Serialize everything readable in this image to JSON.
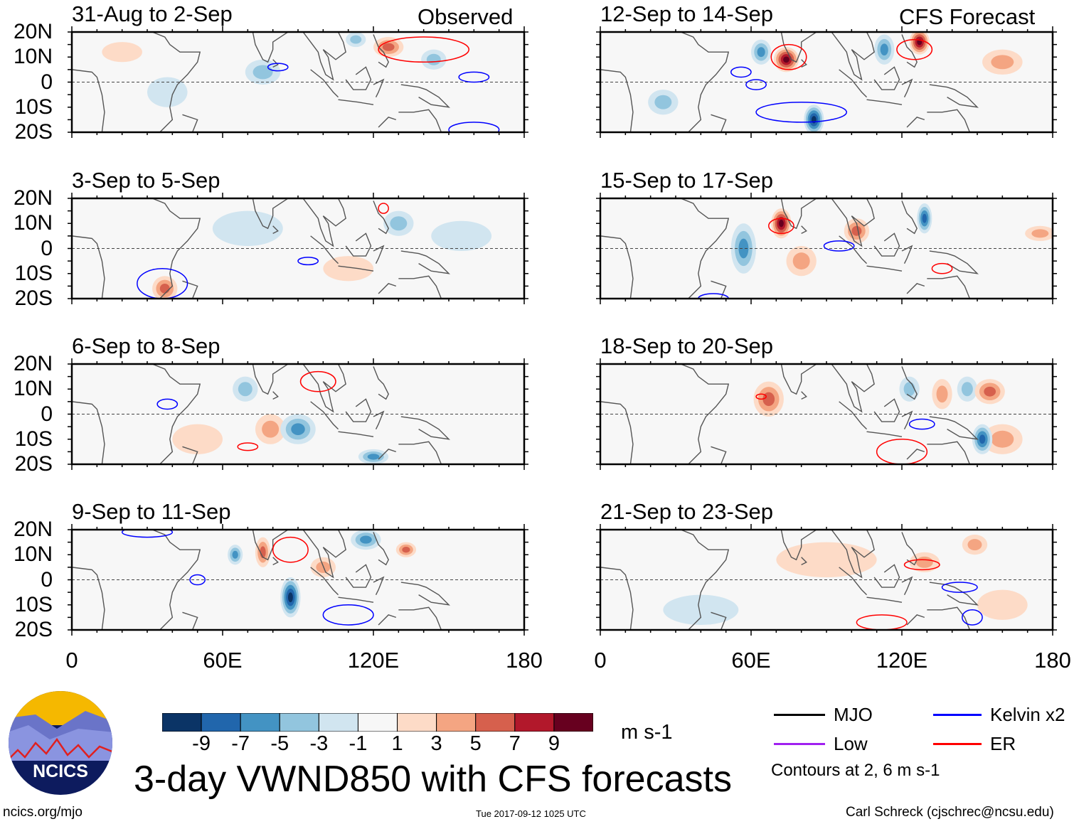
{
  "headers": {
    "left": "Observed",
    "right": "CFS Forecast"
  },
  "lat_labels": [
    "20N",
    "10N",
    "0",
    "10S",
    "20S"
  ],
  "lon_labels": [
    "0",
    "60E",
    "120E",
    "180"
  ],
  "panels": [
    {
      "title": "31-Aug to 2-Sep",
      "blobs": [
        {
          "lon": 76,
          "lat": 4,
          "v": -3,
          "rx": 7,
          "ry": 5
        },
        {
          "lon": 126,
          "lat": 14,
          "v": 5,
          "rx": 6,
          "ry": 4
        },
        {
          "lon": 113,
          "lat": 17,
          "v": -3,
          "rx": 4,
          "ry": 3
        },
        {
          "lon": 144,
          "lat": 9,
          "v": -3,
          "rx": 5,
          "ry": 4
        },
        {
          "lon": 38,
          "lat": -4,
          "v": -1,
          "rx": 8,
          "ry": 6
        },
        {
          "lon": 20,
          "lat": 12,
          "v": 1,
          "rx": 8,
          "ry": 4
        }
      ],
      "contours": [
        {
          "lon": 140,
          "lat": 13,
          "c": "ER",
          "rx": 18,
          "ry": 5
        },
        {
          "lon": 160,
          "lat": 2,
          "c": "Kelvin",
          "rx": 6,
          "ry": 2
        },
        {
          "lon": 82,
          "lat": 6,
          "c": "Kelvin",
          "rx": 4,
          "ry": 1.5
        },
        {
          "lon": 160,
          "lat": -19,
          "c": "Kelvin",
          "rx": 10,
          "ry": 3
        }
      ]
    },
    {
      "title": "3-Sep to 5-Sep",
      "blobs": [
        {
          "lon": 37,
          "lat": -16,
          "v": 5,
          "rx": 5,
          "ry": 5
        },
        {
          "lon": 70,
          "lat": 8,
          "v": -1,
          "rx": 14,
          "ry": 7
        },
        {
          "lon": 130,
          "lat": 10,
          "v": -3,
          "rx": 6,
          "ry": 5
        },
        {
          "lon": 155,
          "lat": 5,
          "v": -1,
          "rx": 12,
          "ry": 6
        },
        {
          "lon": 110,
          "lat": -8,
          "v": 1,
          "rx": 10,
          "ry": 5
        }
      ],
      "contours": [
        {
          "lon": 36,
          "lat": -14,
          "c": "Kelvin",
          "rx": 10,
          "ry": 6
        },
        {
          "lon": 124,
          "lat": 16,
          "c": "ER",
          "rx": 2,
          "ry": 2
        },
        {
          "lon": 94,
          "lat": -5,
          "c": "Kelvin",
          "rx": 4,
          "ry": 1.5
        }
      ]
    },
    {
      "title": "6-Sep to 8-Sep",
      "blobs": [
        {
          "lon": 90,
          "lat": -6,
          "v": -5,
          "rx": 7,
          "ry": 6
        },
        {
          "lon": 69,
          "lat": 10,
          "v": -3,
          "rx": 5,
          "ry": 5
        },
        {
          "lon": 79,
          "lat": -6,
          "v": 3,
          "rx": 6,
          "ry": 6
        },
        {
          "lon": 120,
          "lat": -17,
          "v": -5,
          "rx": 6,
          "ry": 3
        },
        {
          "lon": 50,
          "lat": -10,
          "v": 1,
          "rx": 10,
          "ry": 6
        }
      ],
      "contours": [
        {
          "lon": 98,
          "lat": 13,
          "c": "ER",
          "rx": 7,
          "ry": 4
        },
        {
          "lon": 70,
          "lat": -13,
          "c": "ER",
          "rx": 4,
          "ry": 1.5
        },
        {
          "lon": 38,
          "lat": 4,
          "c": "Kelvin",
          "rx": 4,
          "ry": 2
        }
      ]
    },
    {
      "title": "9-Sep to 11-Sep",
      "blobs": [
        {
          "lon": 87,
          "lat": -7,
          "v": -9,
          "rx": 4,
          "ry": 8
        },
        {
          "lon": 76,
          "lat": 11,
          "v": 5,
          "rx": 3,
          "ry": 6
        },
        {
          "lon": 65,
          "lat": 10,
          "v": -5,
          "rx": 3,
          "ry": 4
        },
        {
          "lon": 117,
          "lat": 16,
          "v": -5,
          "rx": 6,
          "ry": 4
        },
        {
          "lon": 133,
          "lat": 12,
          "v": 5,
          "rx": 4,
          "ry": 3
        },
        {
          "lon": 100,
          "lat": 5,
          "v": 3,
          "rx": 5,
          "ry": 4
        }
      ],
      "contours": [
        {
          "lon": 87,
          "lat": 12,
          "c": "ER",
          "rx": 7,
          "ry": 5
        },
        {
          "lon": 50,
          "lat": 0,
          "c": "Kelvin",
          "rx": 3,
          "ry": 2
        },
        {
          "lon": 110,
          "lat": -14,
          "c": "Kelvin",
          "rx": 10,
          "ry": 4
        },
        {
          "lon": 30,
          "lat": 19,
          "c": "Kelvin",
          "rx": 10,
          "ry": 2
        }
      ]
    },
    {
      "title": "12-Sep to 14-Sep",
      "blobs": [
        {
          "lon": 74,
          "lat": 9,
          "v": 9,
          "rx": 5,
          "ry": 5
        },
        {
          "lon": 127,
          "lat": 16,
          "v": 9,
          "rx": 4,
          "ry": 5
        },
        {
          "lon": 64,
          "lat": 12,
          "v": -5,
          "rx": 4,
          "ry": 5
        },
        {
          "lon": 113,
          "lat": 13,
          "v": -5,
          "rx": 4,
          "ry": 6
        },
        {
          "lon": 85,
          "lat": -15,
          "v": -9,
          "rx": 4,
          "ry": 6
        },
        {
          "lon": 25,
          "lat": -8,
          "v": -3,
          "rx": 6,
          "ry": 5
        },
        {
          "lon": 160,
          "lat": 8,
          "v": 3,
          "rx": 8,
          "ry": 5
        }
      ],
      "contours": [
        {
          "lon": 75,
          "lat": 10,
          "c": "ER",
          "rx": 7,
          "ry": 5
        },
        {
          "lon": 125,
          "lat": 13,
          "c": "ER",
          "rx": 7,
          "ry": 4
        },
        {
          "lon": 56,
          "lat": 4,
          "c": "Kelvin",
          "rx": 4,
          "ry": 2
        },
        {
          "lon": 62,
          "lat": -1,
          "c": "Kelvin",
          "rx": 4,
          "ry": 2
        },
        {
          "lon": 80,
          "lat": -12,
          "c": "Kelvin",
          "rx": 18,
          "ry": 4
        }
      ]
    },
    {
      "title": "15-Sep to 17-Sep",
      "blobs": [
        {
          "lon": 72,
          "lat": 10,
          "v": 9,
          "rx": 4,
          "ry": 6
        },
        {
          "lon": 57,
          "lat": 0,
          "v": -5,
          "rx": 5,
          "ry": 10
        },
        {
          "lon": 129,
          "lat": 12,
          "v": -7,
          "rx": 3,
          "ry": 6
        },
        {
          "lon": 102,
          "lat": 7,
          "v": 5,
          "rx": 5,
          "ry": 5
        },
        {
          "lon": 80,
          "lat": -5,
          "v": 3,
          "rx": 6,
          "ry": 6
        },
        {
          "lon": 175,
          "lat": 6,
          "v": 3,
          "rx": 6,
          "ry": 3
        }
      ],
      "contours": [
        {
          "lon": 72,
          "lat": 9,
          "c": "ER",
          "rx": 5,
          "ry": 3
        },
        {
          "lon": 95,
          "lat": 1,
          "c": "Kelvin",
          "rx": 6,
          "ry": 2
        },
        {
          "lon": 136,
          "lat": -8,
          "c": "ER",
          "rx": 4,
          "ry": 2
        },
        {
          "lon": 45,
          "lat": -20,
          "c": "Kelvin",
          "rx": 6,
          "ry": 2
        }
      ]
    },
    {
      "title": "18-Sep to 20-Sep",
      "blobs": [
        {
          "lon": 67,
          "lat": 6,
          "v": 5,
          "rx": 6,
          "ry": 7
        },
        {
          "lon": 155,
          "lat": 9,
          "v": 5,
          "rx": 6,
          "ry": 5
        },
        {
          "lon": 152,
          "lat": -10,
          "v": -7,
          "rx": 4,
          "ry": 6
        },
        {
          "lon": 146,
          "lat": 10,
          "v": -3,
          "rx": 4,
          "ry": 5
        },
        {
          "lon": 136,
          "lat": 8,
          "v": 3,
          "rx": 4,
          "ry": 6
        },
        {
          "lon": 123,
          "lat": 10,
          "v": -3,
          "rx": 4,
          "ry": 5
        },
        {
          "lon": 160,
          "lat": -10,
          "v": 3,
          "rx": 8,
          "ry": 6
        }
      ],
      "contours": [
        {
          "lon": 128,
          "lat": -4,
          "c": "Kelvin",
          "rx": 5,
          "ry": 2
        },
        {
          "lon": 120,
          "lat": -15,
          "c": "ER",
          "rx": 10,
          "ry": 5
        },
        {
          "lon": 64,
          "lat": 7,
          "c": "ER",
          "rx": 2,
          "ry": 1
        }
      ]
    },
    {
      "title": "21-Sep to 23-Sep",
      "blobs": [
        {
          "lon": 129,
          "lat": 7,
          "v": 3,
          "rx": 6,
          "ry": 4
        },
        {
          "lon": 149,
          "lat": 14,
          "v": 3,
          "rx": 5,
          "ry": 4
        },
        {
          "lon": 90,
          "lat": 8,
          "v": 1,
          "rx": 20,
          "ry": 7
        },
        {
          "lon": 40,
          "lat": -12,
          "v": -1,
          "rx": 15,
          "ry": 6
        },
        {
          "lon": 160,
          "lat": -10,
          "v": 1,
          "rx": 10,
          "ry": 6
        }
      ],
      "contours": [
        {
          "lon": 128,
          "lat": 6,
          "c": "ER",
          "rx": 7,
          "ry": 2
        },
        {
          "lon": 143,
          "lat": -3,
          "c": "Kelvin",
          "rx": 7,
          "ry": 2
        },
        {
          "lon": 148,
          "lat": -15,
          "c": "Kelvin",
          "rx": 4,
          "ry": 3
        },
        {
          "lon": 112,
          "lat": -17,
          "c": "ER",
          "rx": 10,
          "ry": 3
        }
      ]
    }
  ],
  "chart_data": {
    "type": "heatmap",
    "title": "3-day VWND850 with CFS forecasts",
    "units": "m s-1",
    "colorbar": {
      "ticks": [
        "-9",
        "-7",
        "-5",
        "-3",
        "-1",
        "1",
        "3",
        "5",
        "7",
        "9"
      ],
      "bins": [
        -11,
        -9,
        -7,
        -5,
        -3,
        -1,
        1,
        3,
        5,
        7,
        9,
        11
      ],
      "colors": [
        "#0b3466",
        "#2166ac",
        "#4393c3",
        "#92c5de",
        "#d1e5f0",
        "#f7f7f7",
        "#fddbc7",
        "#f4a582",
        "#d6604d",
        "#b2182b",
        "#67001f"
      ]
    },
    "xlim": [
      0,
      180
    ],
    "ylim": [
      -20,
      20
    ]
  },
  "legend": {
    "items": [
      {
        "label": "MJO",
        "color": "#000000"
      },
      {
        "label": "Kelvin x2",
        "color": "#0000ff"
      },
      {
        "label": "Low",
        "color": "#a020f0"
      },
      {
        "label": "ER",
        "color": "#ff0000"
      }
    ],
    "note": "Contours at 2, 6 m s-1"
  },
  "footer": {
    "url": "ncics.org/mjo",
    "timestamp": "Tue 2017-09-12 1025 UTC",
    "author": "Carl Schreck (cjschrec@ncsu.edu)",
    "logo_text": "NCICS"
  }
}
